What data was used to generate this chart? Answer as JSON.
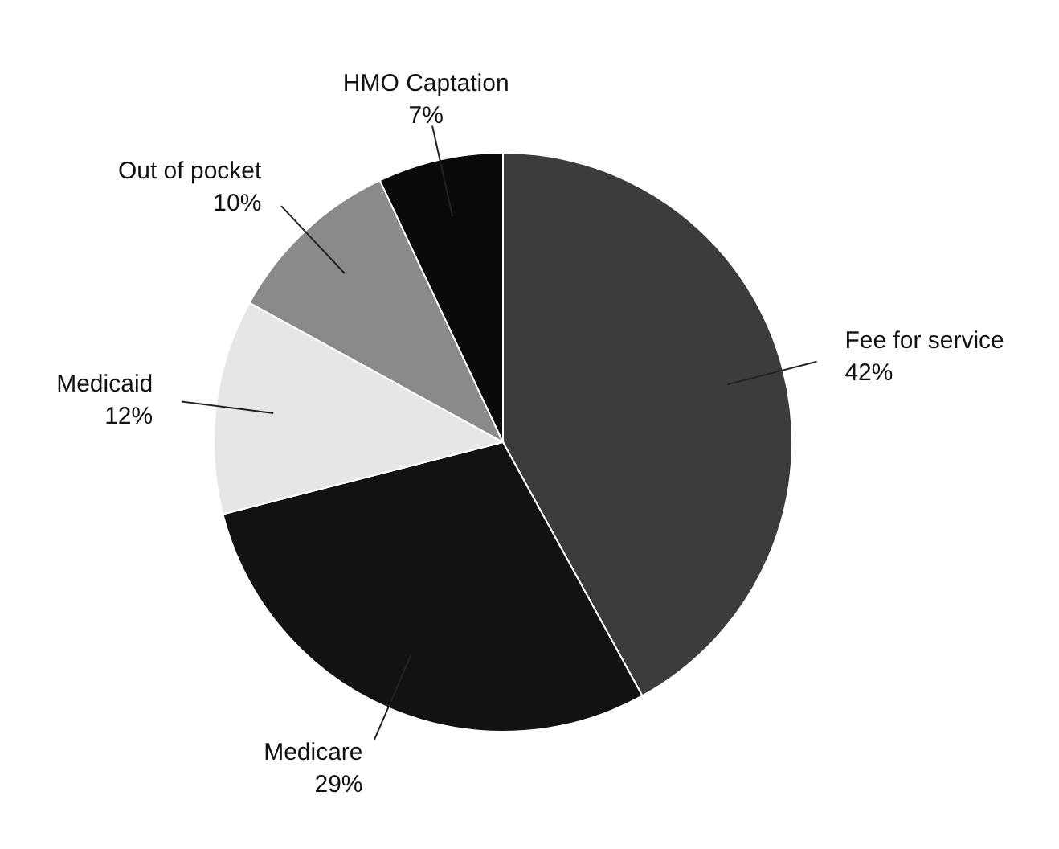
{
  "chart_data": {
    "type": "pie",
    "categories": [
      "Fee for service",
      "Medicare",
      "Medicaid",
      "Out of pocket",
      "HMO Captation"
    ],
    "values": [
      42,
      29,
      12,
      10,
      7
    ],
    "colors": [
      "#3c3c3c",
      "#121212",
      "#e6e6e6",
      "#8a8a8a",
      "#0a0a0a"
    ],
    "value_labels": [
      "42%",
      "29%",
      "12%",
      "10%",
      "7%"
    ]
  }
}
